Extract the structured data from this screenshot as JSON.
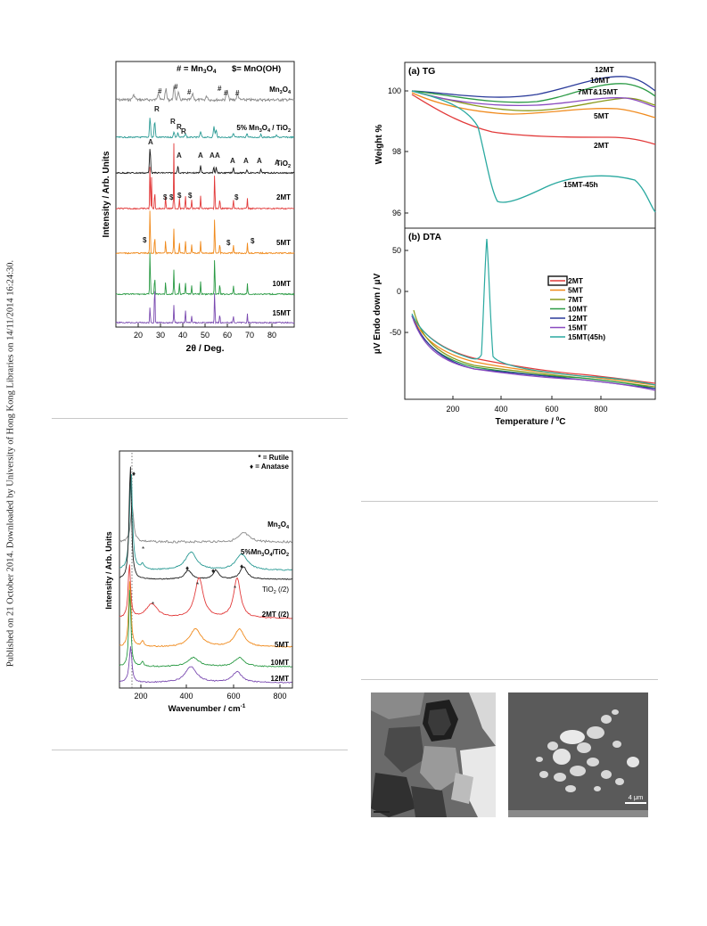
{
  "sidebar": {
    "text": "Published on 21 October 2014. Downloaded by University of Hong Kong Libraries on 14/11/2014 16:24:30."
  },
  "xrd": {
    "legend_mn3o4": "# = Mn",
    "legend_mn3o4_sub": "3",
    "legend_mn3o4_o": "O",
    "legend_mn3o4_sub2": "4",
    "legend_mnooh": "$= MnO(OH)",
    "ylabel": "Intensity / Arb. Units",
    "xlabel": "2θ / Deg.",
    "xticks": [
      "20",
      "30",
      "40",
      "50",
      "60",
      "70",
      "80"
    ],
    "series": [
      {
        "name": "Mn3O4",
        "color": "#8a8a8a"
      },
      {
        "name": "5% Mn3O4 / TiO2",
        "color": "#2a9a94"
      },
      {
        "name": "TiO2",
        "color": "#1a1a1a"
      },
      {
        "name": "2MT",
        "color": "#e23a3a"
      },
      {
        "name": "5MT",
        "color": "#f08a1c"
      },
      {
        "name": "10MT",
        "color": "#2a9a44"
      },
      {
        "name": "15MT",
        "color": "#7a4ab0"
      }
    ],
    "labels": {
      "mn3o4": "Mn",
      "mn3o4_a": "3",
      "mn3o4_b": "O",
      "mn3o4_c": "4",
      "mix": "5% Mn",
      "mix_a": "3",
      "mix_b": "O",
      "mix_c": "4",
      "mix_d": " / TiO",
      "mix_e": "2",
      "tio2": "TiO",
      "tio2_a": "2",
      "s2mt": "2MT",
      "s5mt": "5MT",
      "s10mt": "10MT",
      "s15mt": "15MT"
    },
    "marks": {
      "hash": "#",
      "dollar": "$",
      "R": "R",
      "A": "A"
    }
  },
  "tg": {
    "title": "(a) TG",
    "ylabel": "Weight %",
    "yticks": [
      "100",
      "98",
      "96"
    ],
    "labels": {
      "l12": "12MT",
      "l10": "10MT",
      "l7_15": "7MT&15MT",
      "l5": "5MT",
      "l2": "2MT",
      "l15_45": "15MT-45h"
    }
  },
  "dta": {
    "title": "(b) DTA",
    "ylabel": "μV Endo down / μV",
    "xlabel": "Temperature / °C",
    "xlabel_pre": "Temperature / ",
    "xlabel_sup": "0",
    "xlabel_post": "C",
    "yticks": [
      "50",
      "0",
      "-50"
    ],
    "xticks": [
      "200",
      "400",
      "600",
      "800"
    ],
    "legend": [
      {
        "name": "2MT",
        "color": "#e23a3a"
      },
      {
        "name": "5MT",
        "color": "#f08a1c"
      },
      {
        "name": "7MT",
        "color": "#8a9a1a"
      },
      {
        "name": "10MT",
        "color": "#2a9a44"
      },
      {
        "name": "12MT",
        "color": "#2a3a9a"
      },
      {
        "name": "15MT",
        "color": "#8a4ac0"
      },
      {
        "name": "15MT(45h)",
        "color": "#2aa9a0"
      }
    ]
  },
  "raman": {
    "legend_rutile": "* = Rutile",
    "legend_anatase": "♦ = Anatase",
    "ylabel": "Intensity / Arb. Units",
    "xlabel_pre": "Wavenumber / cm",
    "xlabel_sup": "-1",
    "xticks": [
      "200",
      "400",
      "600",
      "800"
    ],
    "labels": {
      "mn3o4": "Mn",
      "mn3o4_a": "3",
      "mn3o4_b": "O",
      "mn3o4_c": "4",
      "mix": "5%Mn",
      "mix_a": "3",
      "mix_b": "O",
      "mix_c": "4",
      "mix_d": "/TiO",
      "mix_e": "2",
      "tio2": "TiO",
      "tio2_a": "2",
      "tio2_b": " (/2)",
      "s2mt": "2MT (/2)",
      "s5mt": "5MT",
      "s10mt": "10MT",
      "s12mt": "12MT"
    }
  },
  "micrograph": {
    "scale_label": "4 μm"
  }
}
